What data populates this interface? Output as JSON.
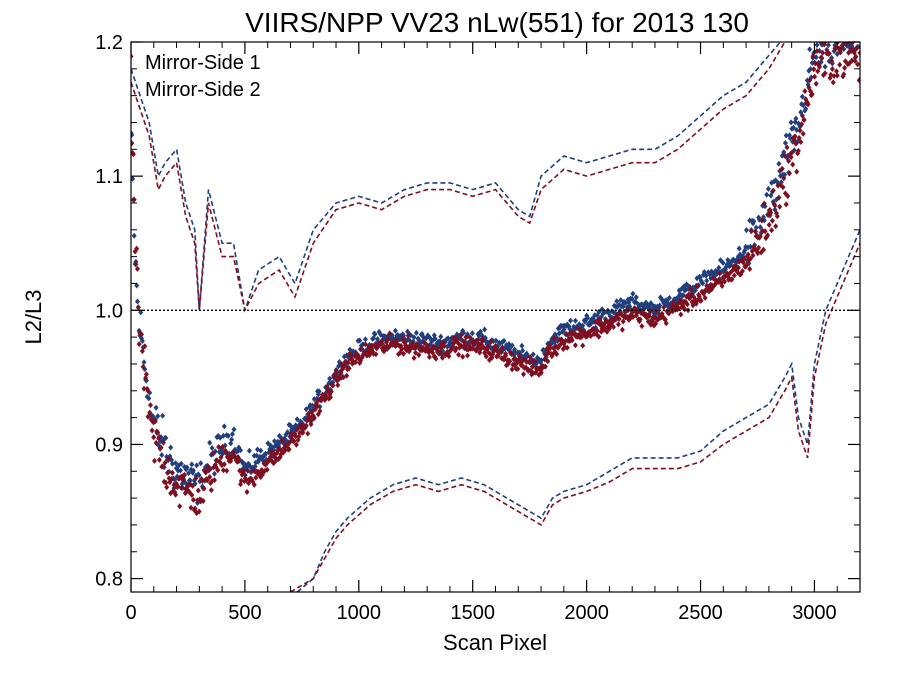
{
  "chart_data": {
    "type": "scatter",
    "title": "VIIRS/NPP VV23 nLw(551) for 2013 130",
    "xlabel": "Scan Pixel",
    "ylabel": "L2/L3",
    "xlim": [
      0,
      3200
    ],
    "ylim": [
      0.79,
      1.2
    ],
    "xticks": [
      0,
      500,
      1000,
      1500,
      2000,
      2500,
      3000
    ],
    "yticks": [
      0.8,
      0.9,
      1.0,
      1.1,
      1.2
    ],
    "xtick_labels": [
      "0",
      "500",
      "1000",
      "1500",
      "2000",
      "2500",
      "3000"
    ],
    "ytick_labels": [
      "0.8",
      "0.9",
      "1.0",
      "1.1",
      "1.2"
    ],
    "reference_line": 1.0,
    "grid": false,
    "legend_position": "top-left",
    "series": [
      {
        "name": "Mirror-Side 1",
        "color": "#1f3f7f",
        "center_knots": [
          [
            0,
            1.13
          ],
          [
            15,
            1.05
          ],
          [
            30,
            1.0
          ],
          [
            60,
            0.96
          ],
          [
            90,
            0.92
          ],
          [
            150,
            0.895
          ],
          [
            200,
            0.88
          ],
          [
            250,
            0.875
          ],
          [
            300,
            0.87
          ],
          [
            340,
            0.885
          ],
          [
            400,
            0.9
          ],
          [
            450,
            0.905
          ],
          [
            500,
            0.88
          ],
          [
            560,
            0.89
          ],
          [
            650,
            0.9
          ],
          [
            750,
            0.915
          ],
          [
            850,
            0.94
          ],
          [
            950,
            0.965
          ],
          [
            1050,
            0.975
          ],
          [
            1150,
            0.98
          ],
          [
            1250,
            0.978
          ],
          [
            1350,
            0.975
          ],
          [
            1450,
            0.98
          ],
          [
            1550,
            0.978
          ],
          [
            1650,
            0.97
          ],
          [
            1750,
            0.963
          ],
          [
            1800,
            0.962
          ],
          [
            1830,
            0.975
          ],
          [
            1900,
            0.985
          ],
          [
            2000,
            0.99
          ],
          [
            2100,
            0.998
          ],
          [
            2200,
            1.005
          ],
          [
            2300,
            1.0
          ],
          [
            2400,
            1.01
          ],
          [
            2500,
            1.02
          ],
          [
            2600,
            1.03
          ],
          [
            2700,
            1.045
          ],
          [
            2800,
            1.075
          ],
          [
            2870,
            1.11
          ],
          [
            2920,
            1.13
          ],
          [
            2960,
            1.16
          ],
          [
            3000,
            1.19
          ],
          [
            3100,
            1.2
          ],
          [
            3200,
            1.2
          ]
        ],
        "upper_bound_knots": [
          [
            0,
            1.18
          ],
          [
            40,
            1.16
          ],
          [
            80,
            1.14
          ],
          [
            120,
            1.1
          ],
          [
            150,
            1.11
          ],
          [
            200,
            1.12
          ],
          [
            240,
            1.08
          ],
          [
            280,
            1.06
          ],
          [
            300,
            1.0
          ],
          [
            340,
            1.09
          ],
          [
            400,
            1.05
          ],
          [
            450,
            1.05
          ],
          [
            500,
            1.0
          ],
          [
            560,
            1.03
          ],
          [
            650,
            1.04
          ],
          [
            720,
            1.02
          ],
          [
            800,
            1.06
          ],
          [
            900,
            1.08
          ],
          [
            1000,
            1.085
          ],
          [
            1100,
            1.08
          ],
          [
            1200,
            1.09
          ],
          [
            1300,
            1.095
          ],
          [
            1400,
            1.095
          ],
          [
            1500,
            1.09
          ],
          [
            1600,
            1.095
          ],
          [
            1700,
            1.075
          ],
          [
            1750,
            1.07
          ],
          [
            1800,
            1.1
          ],
          [
            1900,
            1.115
          ],
          [
            2000,
            1.11
          ],
          [
            2100,
            1.115
          ],
          [
            2200,
            1.12
          ],
          [
            2300,
            1.12
          ],
          [
            2400,
            1.13
          ],
          [
            2500,
            1.145
          ],
          [
            2600,
            1.16
          ],
          [
            2700,
            1.17
          ],
          [
            2800,
            1.19
          ],
          [
            2850,
            1.2
          ]
        ],
        "lower_bound_knots": [
          [
            730,
            0.79
          ],
          [
            800,
            0.8
          ],
          [
            850,
            0.82
          ],
          [
            900,
            0.835
          ],
          [
            950,
            0.845
          ],
          [
            1050,
            0.86
          ],
          [
            1150,
            0.87
          ],
          [
            1250,
            0.875
          ],
          [
            1350,
            0.87
          ],
          [
            1450,
            0.875
          ],
          [
            1550,
            0.87
          ],
          [
            1650,
            0.86
          ],
          [
            1750,
            0.85
          ],
          [
            1800,
            0.845
          ],
          [
            1850,
            0.86
          ],
          [
            1900,
            0.865
          ],
          [
            2000,
            0.87
          ],
          [
            2100,
            0.88
          ],
          [
            2200,
            0.89
          ],
          [
            2300,
            0.89
          ],
          [
            2400,
            0.89
          ],
          [
            2500,
            0.895
          ],
          [
            2600,
            0.91
          ],
          [
            2700,
            0.92
          ],
          [
            2800,
            0.93
          ],
          [
            2870,
            0.95
          ],
          [
            2900,
            0.96
          ],
          [
            2930,
            0.92
          ],
          [
            2970,
            0.9
          ],
          [
            3000,
            0.96
          ],
          [
            3050,
            1.0
          ],
          [
            3100,
            1.02
          ],
          [
            3150,
            1.04
          ],
          [
            3200,
            1.06
          ]
        ]
      },
      {
        "name": "Mirror-Side 2",
        "color": "#7f0f1f",
        "center_knots": [
          [
            0,
            1.16
          ],
          [
            15,
            1.07
          ],
          [
            30,
            1.0
          ],
          [
            60,
            0.95
          ],
          [
            90,
            0.91
          ],
          [
            150,
            0.885
          ],
          [
            200,
            0.87
          ],
          [
            250,
            0.865
          ],
          [
            300,
            0.86
          ],
          [
            340,
            0.875
          ],
          [
            400,
            0.89
          ],
          [
            450,
            0.895
          ],
          [
            500,
            0.87
          ],
          [
            560,
            0.88
          ],
          [
            650,
            0.893
          ],
          [
            750,
            0.91
          ],
          [
            850,
            0.935
          ],
          [
            950,
            0.96
          ],
          [
            1050,
            0.97
          ],
          [
            1150,
            0.975
          ],
          [
            1250,
            0.972
          ],
          [
            1350,
            0.97
          ],
          [
            1450,
            0.974
          ],
          [
            1550,
            0.972
          ],
          [
            1650,
            0.965
          ],
          [
            1750,
            0.957
          ],
          [
            1800,
            0.955
          ],
          [
            1830,
            0.968
          ],
          [
            1900,
            0.978
          ],
          [
            2000,
            0.983
          ],
          [
            2100,
            0.99
          ],
          [
            2200,
            0.997
          ],
          [
            2300,
            0.993
          ],
          [
            2400,
            1.002
          ],
          [
            2500,
            1.012
          ],
          [
            2600,
            1.022
          ],
          [
            2700,
            1.036
          ],
          [
            2800,
            1.065
          ],
          [
            2870,
            1.1
          ],
          [
            2920,
            1.12
          ],
          [
            2960,
            1.15
          ],
          [
            3000,
            1.18
          ],
          [
            3100,
            1.19
          ],
          [
            3200,
            1.19
          ]
        ],
        "upper_bound_knots": [
          [
            0,
            1.17
          ],
          [
            40,
            1.15
          ],
          [
            80,
            1.13
          ],
          [
            120,
            1.09
          ],
          [
            150,
            1.1
          ],
          [
            200,
            1.11
          ],
          [
            240,
            1.07
          ],
          [
            280,
            1.05
          ],
          [
            300,
            1.0
          ],
          [
            340,
            1.08
          ],
          [
            400,
            1.04
          ],
          [
            450,
            1.04
          ],
          [
            500,
            1.0
          ],
          [
            560,
            1.02
          ],
          [
            650,
            1.03
          ],
          [
            720,
            1.01
          ],
          [
            800,
            1.05
          ],
          [
            900,
            1.075
          ],
          [
            1000,
            1.08
          ],
          [
            1100,
            1.075
          ],
          [
            1200,
            1.085
          ],
          [
            1300,
            1.09
          ],
          [
            1400,
            1.09
          ],
          [
            1500,
            1.085
          ],
          [
            1600,
            1.09
          ],
          [
            1700,
            1.07
          ],
          [
            1750,
            1.065
          ],
          [
            1800,
            1.09
          ],
          [
            1900,
            1.105
          ],
          [
            2000,
            1.1
          ],
          [
            2100,
            1.105
          ],
          [
            2200,
            1.11
          ],
          [
            2300,
            1.11
          ],
          [
            2400,
            1.12
          ],
          [
            2500,
            1.135
          ],
          [
            2600,
            1.15
          ],
          [
            2700,
            1.16
          ],
          [
            2800,
            1.18
          ],
          [
            2870,
            1.2
          ]
        ],
        "lower_bound_knots": [
          [
            700,
            0.79
          ],
          [
            800,
            0.8
          ],
          [
            850,
            0.815
          ],
          [
            900,
            0.83
          ],
          [
            950,
            0.84
          ],
          [
            1050,
            0.855
          ],
          [
            1150,
            0.865
          ],
          [
            1250,
            0.87
          ],
          [
            1350,
            0.865
          ],
          [
            1450,
            0.87
          ],
          [
            1550,
            0.865
          ],
          [
            1650,
            0.855
          ],
          [
            1750,
            0.845
          ],
          [
            1800,
            0.84
          ],
          [
            1850,
            0.855
          ],
          [
            1900,
            0.86
          ],
          [
            2000,
            0.865
          ],
          [
            2100,
            0.872
          ],
          [
            2200,
            0.882
          ],
          [
            2300,
            0.882
          ],
          [
            2400,
            0.882
          ],
          [
            2500,
            0.887
          ],
          [
            2600,
            0.9
          ],
          [
            2700,
            0.91
          ],
          [
            2800,
            0.92
          ],
          [
            2870,
            0.94
          ],
          [
            2900,
            0.95
          ],
          [
            2930,
            0.91
          ],
          [
            2970,
            0.89
          ],
          [
            3000,
            0.95
          ],
          [
            3050,
            0.99
          ],
          [
            3100,
            1.01
          ],
          [
            3150,
            1.03
          ],
          [
            3200,
            1.05
          ]
        ]
      }
    ]
  }
}
